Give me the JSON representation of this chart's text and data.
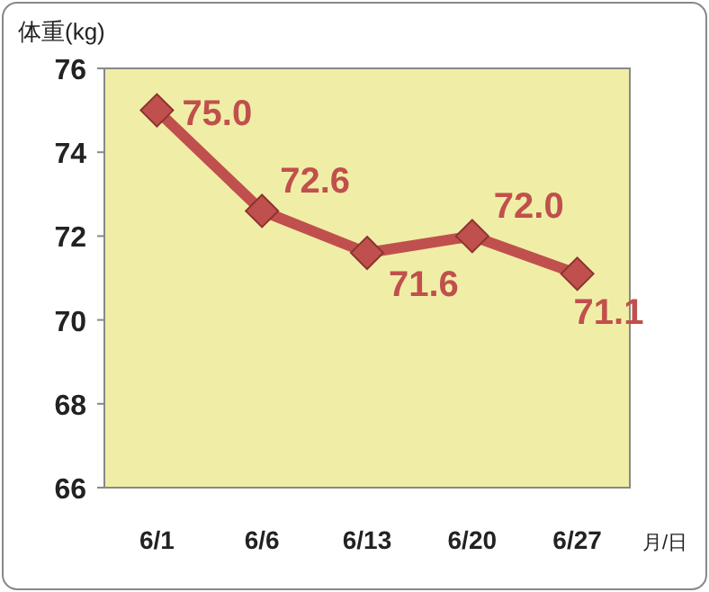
{
  "chart_data": {
    "type": "line",
    "ylabel": "体重(kg)",
    "xlabel": "月/日",
    "categories": [
      "6/1",
      "6/6",
      "6/13",
      "6/20",
      "6/27"
    ],
    "series": [
      {
        "color": "#c0504d",
        "values": [
          75.0,
          72.6,
          71.6,
          72.0,
          71.1
        ],
        "value_labels": [
          "75.0",
          "72.6",
          "71.6",
          "72.0",
          "71.1"
        ]
      }
    ],
    "ylim": [
      66,
      76
    ],
    "yticks": [
      66,
      68,
      70,
      72,
      74,
      76
    ],
    "marker": "diamond",
    "line_style": "solid",
    "grid": false
  }
}
